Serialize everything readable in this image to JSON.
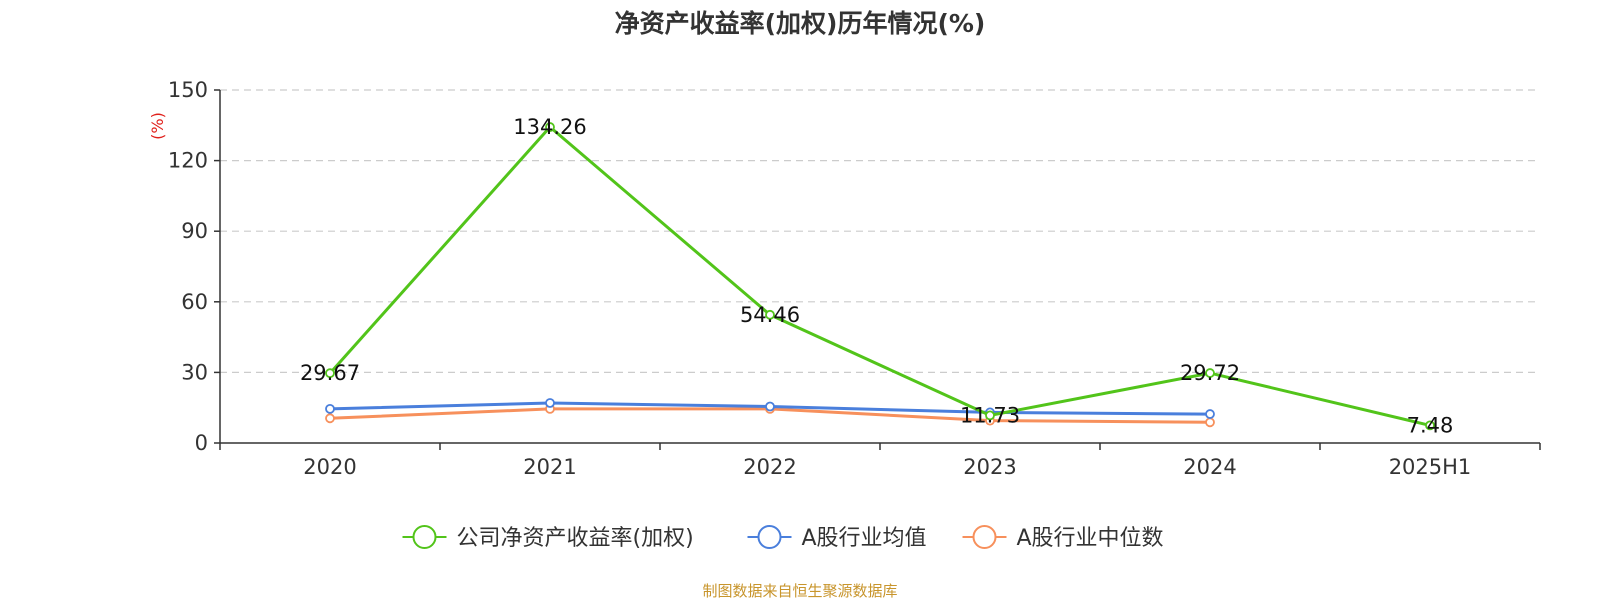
{
  "chart_data": {
    "type": "line",
    "title": "净资产收益率(加权)历年情况(%)",
    "ylabel": "(%)",
    "ylim": [
      0,
      150
    ],
    "yticks": [
      "0",
      "30",
      "60",
      "90",
      "120",
      "150"
    ],
    "grid": true,
    "legend_position": "bottom",
    "categories": [
      "2020",
      "2021",
      "2022",
      "2023",
      "2024",
      "2025H1"
    ],
    "series": [
      {
        "name": "公司净资产收益率(加权)",
        "color": "#52c41a",
        "values": [
          29.67,
          134.26,
          54.46,
          11.73,
          29.72,
          7.48
        ],
        "labels": [
          "29.67",
          "134.26",
          "54.46",
          "11.73",
          "29.72",
          "7.48"
        ]
      },
      {
        "name": "A股行业均值",
        "color": "#4a7fdc",
        "values": [
          14.5,
          17.0,
          15.5,
          13.0,
          12.3,
          null
        ]
      },
      {
        "name": "A股行业中位数",
        "color": "#f7905c",
        "values": [
          10.5,
          14.5,
          14.5,
          9.5,
          8.8,
          null
        ]
      }
    ]
  },
  "source_text": "制图数据来自恒生聚源数据库"
}
